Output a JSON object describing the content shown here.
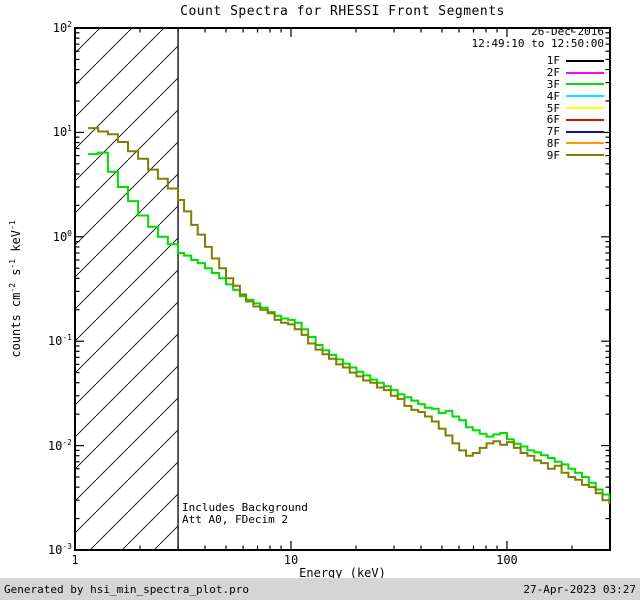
{
  "header": {
    "title": "Count Spectra for RHESSI Front Segments"
  },
  "legend": {
    "date": "26-Dec-2016",
    "time_range": "12:49:10 to 12:50:00",
    "entries": [
      {
        "label": "1F",
        "color": "#000000"
      },
      {
        "label": "2F",
        "color": "#ff00ff"
      },
      {
        "label": "3F",
        "color": "#00dd00"
      },
      {
        "label": "4F",
        "color": "#00eeee"
      },
      {
        "label": "5F",
        "color": "#ffff00"
      },
      {
        "label": "6F",
        "color": "#dd1100"
      },
      {
        "label": "7F",
        "color": "#1111aa"
      },
      {
        "label": "8F",
        "color": "#ff9900"
      },
      {
        "label": "9F",
        "color": "#808000"
      }
    ]
  },
  "annotations": {
    "line1": "Includes Background",
    "line2": "Att A0, FDecim 2"
  },
  "footer": {
    "left": "Generated by hsi_min_spectra_plot.pro",
    "right": "27-Apr-2023 03:27"
  },
  "chart_data": {
    "type": "line",
    "title": "Count Spectra for RHESSI Front Segments",
    "xlabel": "Energy (keV)",
    "ylabel_plain": "counts cm^-2 s^-1 keV^-1",
    "ylabel_parts": [
      {
        "t": "counts cm"
      },
      {
        "s": "-2"
      },
      {
        "t": " s"
      },
      {
        "s": "-1"
      },
      {
        "t": " keV"
      },
      {
        "s": "-1"
      }
    ],
    "xscale": "log",
    "yscale": "log",
    "xlim": [
      1,
      300
    ],
    "ylim": [
      0.001,
      100
    ],
    "grid": false,
    "legend_position": "upper right",
    "xticks": [
      {
        "value": 1,
        "label": "1"
      },
      {
        "value": 10,
        "label": "10"
      },
      {
        "value": 100,
        "label": "100"
      }
    ],
    "yticks": [
      {
        "value": 0.001,
        "exp": -3
      },
      {
        "value": 0.01,
        "exp": -2
      },
      {
        "value": 0.1,
        "exp": -1
      },
      {
        "value": 1,
        "exp": 0
      },
      {
        "value": 10,
        "exp": 1
      },
      {
        "value": 100,
        "exp": 2
      }
    ],
    "hatch_region": {
      "xmin": 1,
      "xmax": 3,
      "style": "diagonal-hatch",
      "note": "low-energy excluded region"
    },
    "x": [
      1.15,
      1.28,
      1.42,
      1.58,
      1.76,
      1.96,
      2.18,
      2.42,
      2.69,
      3.0,
      3.2,
      3.45,
      3.7,
      4.0,
      4.3,
      4.65,
      5.0,
      5.4,
      5.8,
      6.2,
      6.7,
      7.2,
      7.8,
      8.4,
      9.0,
      9.7,
      10.4,
      11.2,
      12.0,
      13.0,
      14.0,
      15.0,
      16.2,
      17.4,
      18.7,
      20.1,
      21.6,
      23.3,
      25.0,
      26.9,
      29.0,
      31.2,
      33.5,
      36.1,
      38.8,
      41.7,
      44.9,
      48.3,
      52.0,
      55.9,
      60.1,
      64.6,
      69.5,
      74.8,
      80.4,
      86.5,
      93.0,
      100.0,
      107.6,
      115.7,
      124.4,
      133.8,
      143.9,
      154.8,
      166.4,
      179.0,
      192.5,
      207.0,
      222.6,
      239.4,
      257.5,
      276.9,
      297.8
    ],
    "series": [
      {
        "name": "3F",
        "color": "#00dd00",
        "step": true,
        "values": [
          6.2,
          6.4,
          4.2,
          3.0,
          2.2,
          1.6,
          1.25,
          1.0,
          0.85,
          0.7,
          0.66,
          0.6,
          0.56,
          0.5,
          0.45,
          0.4,
          0.35,
          0.31,
          0.27,
          0.25,
          0.23,
          0.21,
          0.19,
          0.175,
          0.165,
          0.16,
          0.15,
          0.13,
          0.11,
          0.092,
          0.082,
          0.074,
          0.067,
          0.061,
          0.056,
          0.051,
          0.047,
          0.043,
          0.04,
          0.037,
          0.034,
          0.031,
          0.029,
          0.027,
          0.025,
          0.023,
          0.0225,
          0.0205,
          0.0215,
          0.019,
          0.0175,
          0.015,
          0.014,
          0.013,
          0.0122,
          0.0128,
          0.0132,
          0.0115,
          0.0104,
          0.0098,
          0.009,
          0.0086,
          0.0081,
          0.0076,
          0.007,
          0.0066,
          0.006,
          0.0055,
          0.005,
          0.0044,
          0.0038,
          0.0034,
          0.003
        ]
      },
      {
        "name": "9F",
        "color": "#808000",
        "step": true,
        "values": [
          11.0,
          10.2,
          9.6,
          8.1,
          6.6,
          5.6,
          4.4,
          3.6,
          2.9,
          2.25,
          1.75,
          1.3,
          1.05,
          0.8,
          0.62,
          0.5,
          0.4,
          0.34,
          0.28,
          0.24,
          0.215,
          0.2,
          0.185,
          0.16,
          0.15,
          0.145,
          0.13,
          0.115,
          0.095,
          0.083,
          0.075,
          0.068,
          0.06,
          0.056,
          0.05,
          0.046,
          0.042,
          0.04,
          0.036,
          0.034,
          0.03,
          0.028,
          0.024,
          0.022,
          0.021,
          0.019,
          0.017,
          0.0145,
          0.0125,
          0.0105,
          0.009,
          0.008,
          0.0085,
          0.0095,
          0.0105,
          0.011,
          0.0102,
          0.0108,
          0.0095,
          0.0085,
          0.008,
          0.0072,
          0.0068,
          0.006,
          0.0064,
          0.0055,
          0.005,
          0.0047,
          0.0042,
          0.004,
          0.0035,
          0.003,
          0.0028
        ]
      }
    ]
  }
}
